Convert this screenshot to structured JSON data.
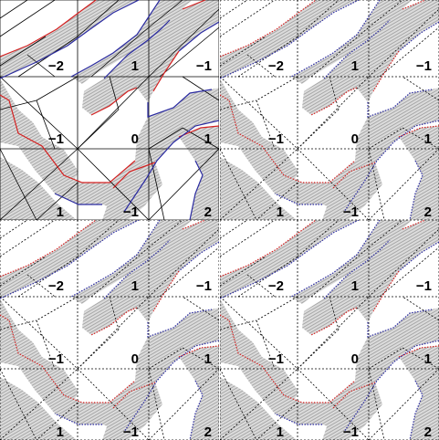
{
  "figure": {
    "colors": {
      "background": "#ffffff",
      "shade": "#d9d9d9",
      "hatch": "#9a9a9a",
      "boundary_red": "#d42020",
      "boundary_blue": "#2a2aa0",
      "grid": "#000000",
      "primary_edges": "#000000"
    },
    "panel_labels": [
      [
        "-2",
        "1",
        "-1"
      ],
      [
        "-1",
        "0",
        "1"
      ],
      [
        "1",
        "-1",
        "2"
      ]
    ],
    "panels": [
      {
        "name": "top-left",
        "style": "solid"
      },
      {
        "name": "top-right",
        "style": "dotted"
      },
      {
        "name": "bottom-left",
        "style": "dotted"
      },
      {
        "name": "bottom-right",
        "style": "dotted"
      }
    ]
  }
}
